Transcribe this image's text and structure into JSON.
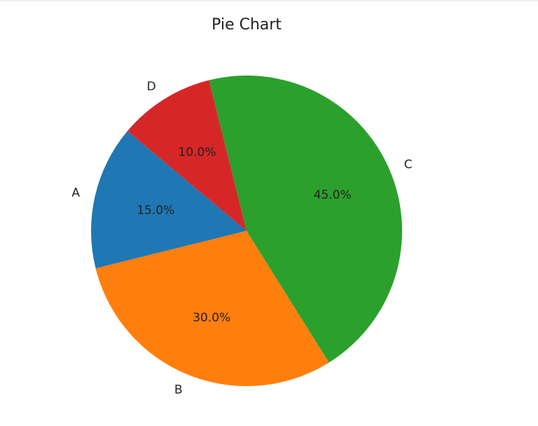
{
  "chart_data": {
    "type": "pie",
    "title": "Pie Chart",
    "categories": [
      "A",
      "B",
      "C",
      "D"
    ],
    "values": [
      15,
      30,
      45,
      10
    ],
    "percent_labels": [
      "15.0%",
      "30.0%",
      "45.0%",
      "10.0%"
    ],
    "colors": [
      "#1f77b4",
      "#ff7f0e",
      "#2ca02c",
      "#d62728"
    ],
    "start_angle": 140,
    "direction": "counterclockwise"
  }
}
